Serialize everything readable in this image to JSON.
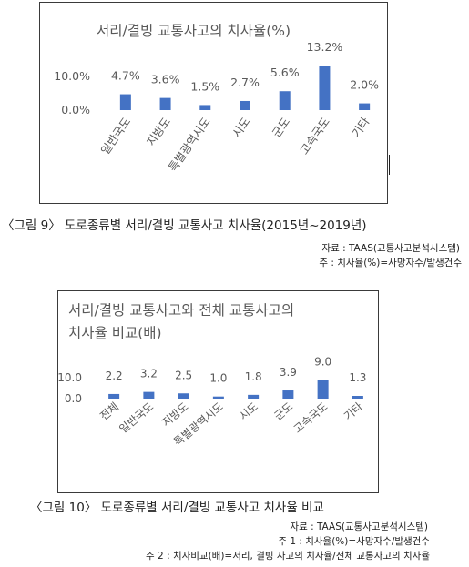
{
  "chart_data": [
    {
      "type": "bar",
      "title": "서리/결빙 교통사고의 치사율(%)",
      "categories": [
        "일반국도",
        "지방도",
        "특별광역시도",
        "시도",
        "군도",
        "고속국도",
        "기타"
      ],
      "values": [
        4.7,
        3.6,
        1.5,
        2.7,
        5.6,
        13.2,
        2.0
      ],
      "data_labels": [
        "4.7%",
        "3.6%",
        "1.5%",
        "2.7%",
        "5.6%",
        "13.2%",
        "2.0%"
      ],
      "y_tick_labels": [
        "0.0%",
        "10.0%"
      ],
      "y_ticks": [
        0,
        10
      ],
      "ylim": [
        0,
        13.2
      ],
      "grid": false,
      "bar_color": "#4472c4"
    },
    {
      "type": "bar",
      "title": "서리/결빙 교통사고와 전체 교통사고의 치사율 비교(배)",
      "categories": [
        "전체",
        "일반국도",
        "지방도",
        "특별광역시도",
        "시도",
        "군도",
        "고속국도",
        "기타"
      ],
      "values": [
        2.2,
        3.2,
        2.5,
        1.0,
        1.8,
        3.9,
        9.0,
        1.3
      ],
      "data_labels": [
        "2.2",
        "3.2",
        "2.5",
        "1.0",
        "1.8",
        "3.9",
        "9.0",
        "1.3"
      ],
      "y_tick_labels": [
        "0.0",
        "10.0"
      ],
      "y_ticks": [
        0,
        10
      ],
      "ylim": [
        0,
        10
      ],
      "grid": false,
      "bar_color": "#4472c4"
    }
  ],
  "captions": {
    "fig9": "〈그림 9〉 도로종류별 서리/결빙 교통사고 치사율(2015년~2019년)",
    "fig9_source": "자료 : TAAS(교통사고분석시스템)",
    "fig9_note": "주 : 치사율(%)=사망자수/발생건수",
    "fig10": "〈그림 10〉 도로종류별 서리/결빙 교통사고 치사율 비교",
    "fig10_source": "자료 : TAAS(교통사고분석시스템)",
    "fig10_note1": "주 1 : 치사율(%)=사망자수/발생건수",
    "fig10_note2": "주 2 : 치사비교(배)=서리, 결빙 사고의 치사율/전체 교통사고의 치사율"
  }
}
